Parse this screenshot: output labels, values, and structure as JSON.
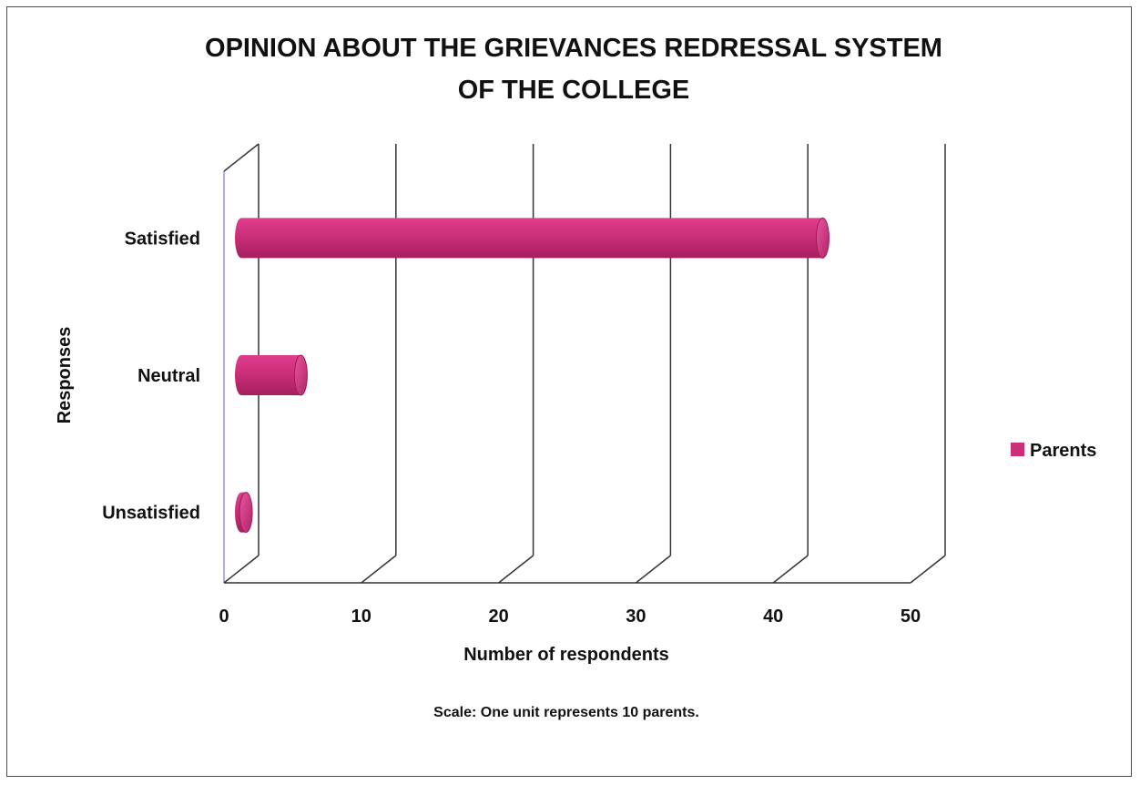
{
  "chart_data": {
    "type": "bar",
    "orientation": "horizontal",
    "three_d": true,
    "title_lines": [
      "OPINION ABOUT THE GRIEVANCES REDRESSAL  SYSTEM",
      "OF THE COLLEGE"
    ],
    "categories": [
      "Satisfied",
      "Neutral",
      "Unsatisfied"
    ],
    "series": [
      {
        "name": "Parents",
        "values": [
          43,
          5,
          1
        ],
        "color": "#cc2f7a"
      }
    ],
    "xlabel": "Number of respondents",
    "ylabel": "Responses",
    "xlim": [
      0,
      50
    ],
    "xticks": [
      "0",
      "10",
      "20",
      "30",
      "40",
      "50"
    ],
    "grid": true,
    "legend_position": "right",
    "note": "Scale: One unit represents  10 parents."
  }
}
